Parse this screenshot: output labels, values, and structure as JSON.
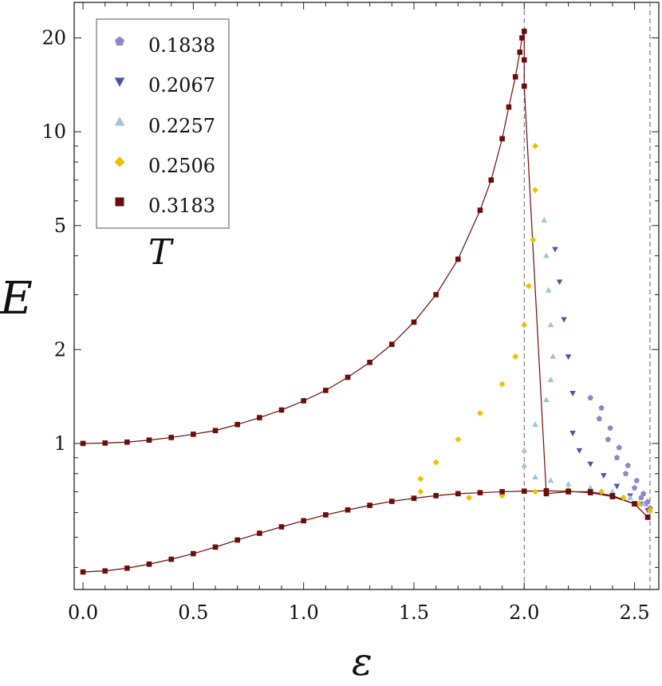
{
  "chart_data": {
    "type": "scatter",
    "xlabel": "ε",
    "ylabel": "E",
    "legend_title": "T",
    "legend_position": "top-left",
    "x_scale": "linear",
    "y_scale": "log",
    "xlim": [
      -0.04,
      2.61
    ],
    "ylim": [
      0.34,
      26
    ],
    "x_ticks": [
      "0.0",
      "0.5",
      "1.0",
      "1.5",
      "2.0",
      "2.5"
    ],
    "x_tick_values": [
      0,
      0.5,
      1.0,
      1.5,
      2.0,
      2.5
    ],
    "y_ticks": [
      "1",
      "2",
      "5",
      "10",
      "20"
    ],
    "y_tick_values": [
      1,
      2,
      5,
      10,
      20
    ],
    "reference_lines_x": [
      2.0,
      2.57
    ],
    "series": [
      {
        "name": "0.1838",
        "marker": "pentagon",
        "color": "#9185c9",
        "x": [
          2.3,
          2.34,
          2.38,
          2.42,
          2.46,
          2.5,
          2.53,
          2.55,
          2.57,
          2.35,
          2.39,
          2.43,
          2.47,
          2.51,
          2.54,
          2.56
        ],
        "y": [
          1.4,
          1.2,
          1.03,
          0.9,
          0.8,
          0.72,
          0.67,
          0.64,
          0.62,
          1.3,
          1.12,
          0.97,
          0.85,
          0.76,
          0.69,
          0.65
        ]
      },
      {
        "name": "0.2067",
        "marker": "triangle-down",
        "color": "#4957a3",
        "x": [
          2.14,
          2.16,
          2.18,
          2.2,
          2.22,
          2.22,
          2.25,
          2.3,
          2.36,
          2.42,
          2.48,
          2.53,
          2.56
        ],
        "y": [
          4.2,
          3.3,
          2.5,
          1.9,
          1.45,
          1.08,
          0.95,
          0.86,
          0.79,
          0.73,
          0.68,
          0.64,
          0.61
        ]
      },
      {
        "name": "0.2257",
        "marker": "triangle-up",
        "color": "#9dc3e6",
        "x": [
          2.09,
          2.1,
          2.11,
          2.12,
          2.13,
          2.12,
          2.1,
          2.05,
          2.0,
          2.0,
          2.05,
          2.12,
          2.2,
          2.3,
          2.4,
          2.48,
          2.54,
          2.57
        ],
        "y": [
          5.2,
          4.0,
          3.1,
          2.4,
          1.9,
          1.6,
          1.38,
          1.15,
          0.95,
          0.85,
          0.78,
          0.76,
          0.74,
          0.72,
          0.7,
          0.67,
          0.64,
          0.61
        ]
      },
      {
        "name": "0.2506",
        "marker": "diamond",
        "color": "#f0c000",
        "x": [
          2.05,
          2.05,
          2.04,
          2.02,
          2.0,
          1.96,
          1.9,
          1.8,
          1.7,
          1.6,
          1.53,
          1.53,
          1.6,
          1.75,
          1.9,
          2.05,
          2.2,
          2.35,
          2.45,
          2.52,
          2.57
        ],
        "y": [
          9.0,
          6.5,
          4.5,
          3.2,
          2.4,
          1.9,
          1.55,
          1.25,
          1.03,
          0.87,
          0.77,
          0.7,
          0.68,
          0.67,
          0.68,
          0.7,
          0.71,
          0.7,
          0.67,
          0.64,
          0.61
        ]
      },
      {
        "name": "0.3183",
        "marker": "square",
        "color": "#6b0d0b",
        "line": true,
        "x": [
          0.0,
          0.1,
          0.2,
          0.3,
          0.4,
          0.5,
          0.6,
          0.7,
          0.8,
          0.9,
          1.0,
          1.1,
          1.2,
          1.3,
          1.4,
          1.5,
          1.6,
          1.7,
          1.8,
          1.85,
          1.9,
          1.93,
          1.96,
          1.98,
          1.99,
          2.0,
          2.0,
          2.0,
          2.1,
          2.2,
          2.3,
          2.4,
          2.5,
          2.56,
          0.0,
          0.1,
          0.2,
          0.3,
          0.4,
          0.5,
          0.6,
          0.7,
          0.8,
          0.9,
          1.0,
          1.1,
          1.2,
          1.3,
          1.4,
          1.5,
          1.6,
          1.7,
          1.8,
          1.9,
          2.0,
          2.1,
          2.2,
          2.3,
          2.4,
          2.5,
          2.56
        ],
        "y": [
          1.0,
          1.003,
          1.01,
          1.025,
          1.045,
          1.07,
          1.1,
          1.15,
          1.21,
          1.28,
          1.37,
          1.48,
          1.63,
          1.82,
          2.08,
          2.45,
          3.0,
          3.9,
          5.6,
          7.0,
          9.5,
          12,
          15,
          18,
          20,
          21,
          17,
          14,
          0.69,
          0.7,
          0.7,
          0.68,
          0.64,
          0.58,
          0.387,
          0.39,
          0.398,
          0.41,
          0.425,
          0.443,
          0.465,
          0.49,
          0.515,
          0.54,
          0.565,
          0.59,
          0.612,
          0.633,
          0.652,
          0.667,
          0.68,
          0.69,
          0.695,
          0.7,
          0.703,
          0.705,
          0.702,
          0.695,
          0.675,
          0.64,
          0.58
        ]
      }
    ]
  },
  "legend": {
    "entries": [
      "0.1838",
      "0.2067",
      "0.2257",
      "0.2506",
      "0.3183"
    ],
    "title": "T"
  }
}
